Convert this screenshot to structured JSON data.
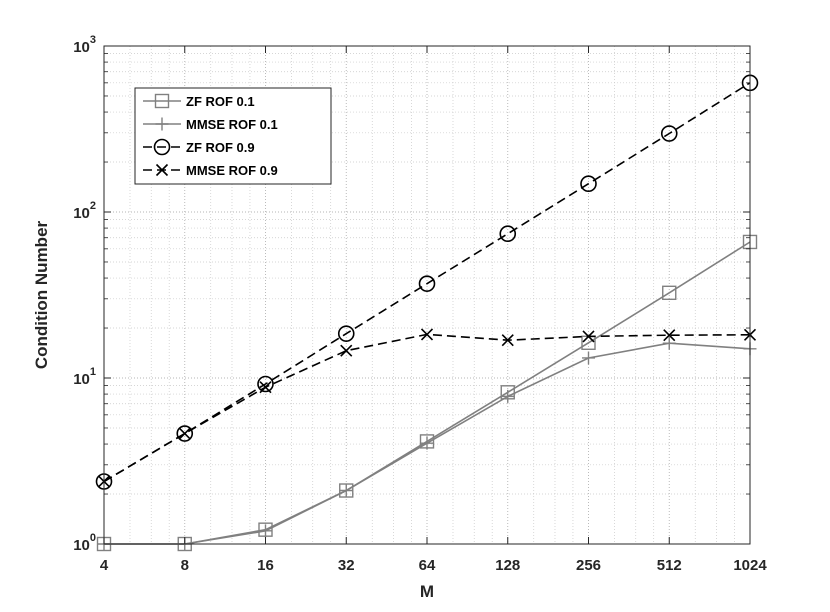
{
  "chart_data": {
    "type": "line",
    "title": "",
    "xlabel": "M",
    "ylabel": "Condition Number",
    "x_scale": "log2",
    "y_scale": "log10",
    "x": [
      4,
      8,
      16,
      32,
      64,
      128,
      256,
      512,
      1024
    ],
    "x_tick_labels": [
      "4",
      "8",
      "16",
      "32",
      "64",
      "128",
      "256",
      "512",
      "1024"
    ],
    "ylim": [
      1,
      1000
    ],
    "y_ticks": [
      {
        "base": "10",
        "exp": "0"
      },
      {
        "base": "10",
        "exp": "1"
      },
      {
        "base": "10",
        "exp": "2"
      },
      {
        "base": "10",
        "exp": "3"
      }
    ],
    "grid": true,
    "legend_position": "top-left",
    "series": [
      {
        "name": "ZF ROF 0.1",
        "color": "#808080",
        "line": "solid",
        "marker": "square",
        "values": [
          1.0,
          1.0,
          1.22,
          2.1,
          4.15,
          8.2,
          16.3,
          32.6,
          66
        ]
      },
      {
        "name": "MMSE ROF 0.1",
        "color": "#808080",
        "line": "solid",
        "marker": "plus",
        "values": [
          1.0,
          1.0,
          1.2,
          2.1,
          4.05,
          7.75,
          13.2,
          16.2,
          15.0
        ]
      },
      {
        "name": "ZF ROF 0.9",
        "color": "#000000",
        "line": "dashed",
        "marker": "circle",
        "values": [
          2.38,
          4.63,
          9.2,
          18.5,
          37,
          74,
          148,
          297,
          600
        ]
      },
      {
        "name": "MMSE ROF 0.9",
        "color": "#000000",
        "line": "dashed",
        "marker": "x",
        "values": [
          2.38,
          4.63,
          8.8,
          14.6,
          18.3,
          16.9,
          17.8,
          18.1,
          18.2
        ]
      }
    ]
  }
}
